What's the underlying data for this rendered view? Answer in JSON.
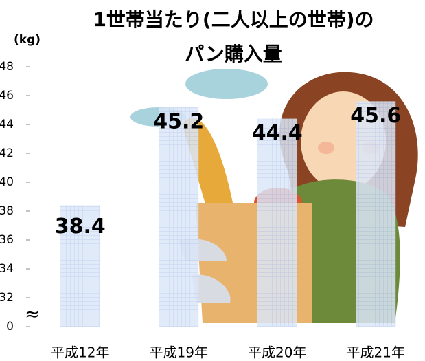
{
  "chart_data": {
    "type": "bar",
    "title": [
      "1世帯当たり(二人以上の世帯)の",
      "パン購入量"
    ],
    "y_label": "(kg)",
    "categories": [
      "平成12年",
      "平成19年",
      "平成20年",
      "平成21年"
    ],
    "values": [
      38.4,
      45.2,
      44.4,
      45.6
    ],
    "ylim": [
      30,
      48
    ],
    "yticks": [
      {
        "value": 30,
        "label": "0"
      },
      32,
      34,
      36,
      38,
      40,
      42,
      44,
      46,
      48
    ]
  }
}
